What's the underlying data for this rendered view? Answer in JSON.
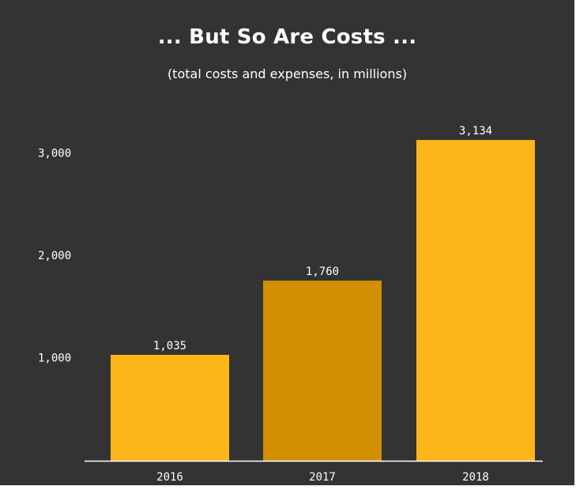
{
  "chart_data": {
    "type": "bar",
    "title": "... But So Are Costs ...",
    "subtitle": "(total costs and expenses, in millions)",
    "categories": [
      "2016",
      "2017",
      "2018"
    ],
    "values": [
      1035,
      1760,
      3134
    ],
    "value_labels": [
      "1,035",
      "1,760",
      "3,134"
    ],
    "yticks": [
      1000,
      2000,
      3000
    ],
    "ytick_labels": [
      "1,000",
      "2,000",
      "3,000"
    ],
    "ylim": [
      0,
      3250
    ],
    "grid": false,
    "colors": {
      "background": "#333333",
      "bar": "#FDB61A",
      "bar_highlight": "#D28F00",
      "text": "#FFFFFF",
      "axis": "#FFFFFF"
    },
    "highlight_index": 1
  }
}
